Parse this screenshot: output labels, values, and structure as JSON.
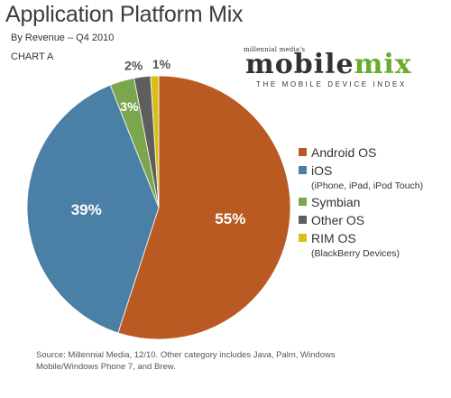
{
  "header": {
    "title": "Application Platform Mix",
    "subtitle": "By Revenue – Q4 2010",
    "chart_label": "CHART A"
  },
  "brand": {
    "top": "millennial media's",
    "main_part1": "mobile",
    "main_part2": "mix",
    "sub": "THE MOBILE DEVICE INDEX"
  },
  "chart_data": {
    "type": "pie",
    "title": "Application Platform Mix",
    "subtitle": "By Revenue – Q4 2010",
    "slices": [
      {
        "name": "Android OS",
        "value": 55,
        "label": "55%",
        "color": "#b85a22"
      },
      {
        "name": "iOS",
        "value": 39,
        "label": "39%",
        "color": "#4a80a6"
      },
      {
        "name": "Symbian",
        "value": 3,
        "label": "3%",
        "color": "#7aa64e"
      },
      {
        "name": "Other OS",
        "value": 2,
        "label": "2%",
        "color": "#5e5e5e"
      },
      {
        "name": "RIM OS",
        "value": 1,
        "label": "1%",
        "color": "#d7bf18"
      }
    ],
    "legend": [
      {
        "label": "Android OS",
        "note": "",
        "color": "#b85a22"
      },
      {
        "label": "iOS",
        "note": "(iPhone, iPad, iPod Touch)",
        "color": "#4a80a6"
      },
      {
        "label": "Symbian",
        "note": "",
        "color": "#7aa64e"
      },
      {
        "label": "Other OS",
        "note": "",
        "color": "#5e5e5e"
      },
      {
        "label": "RIM OS",
        "note": "(BlackBerry Devices)",
        "color": "#d7bf18"
      }
    ],
    "legend_position": "right"
  },
  "footer": {
    "source": "Source: Millennial Media, 12/10. Other category includes Java, Palm, Windows Mobile/Windows Phone 7, and Brew."
  }
}
